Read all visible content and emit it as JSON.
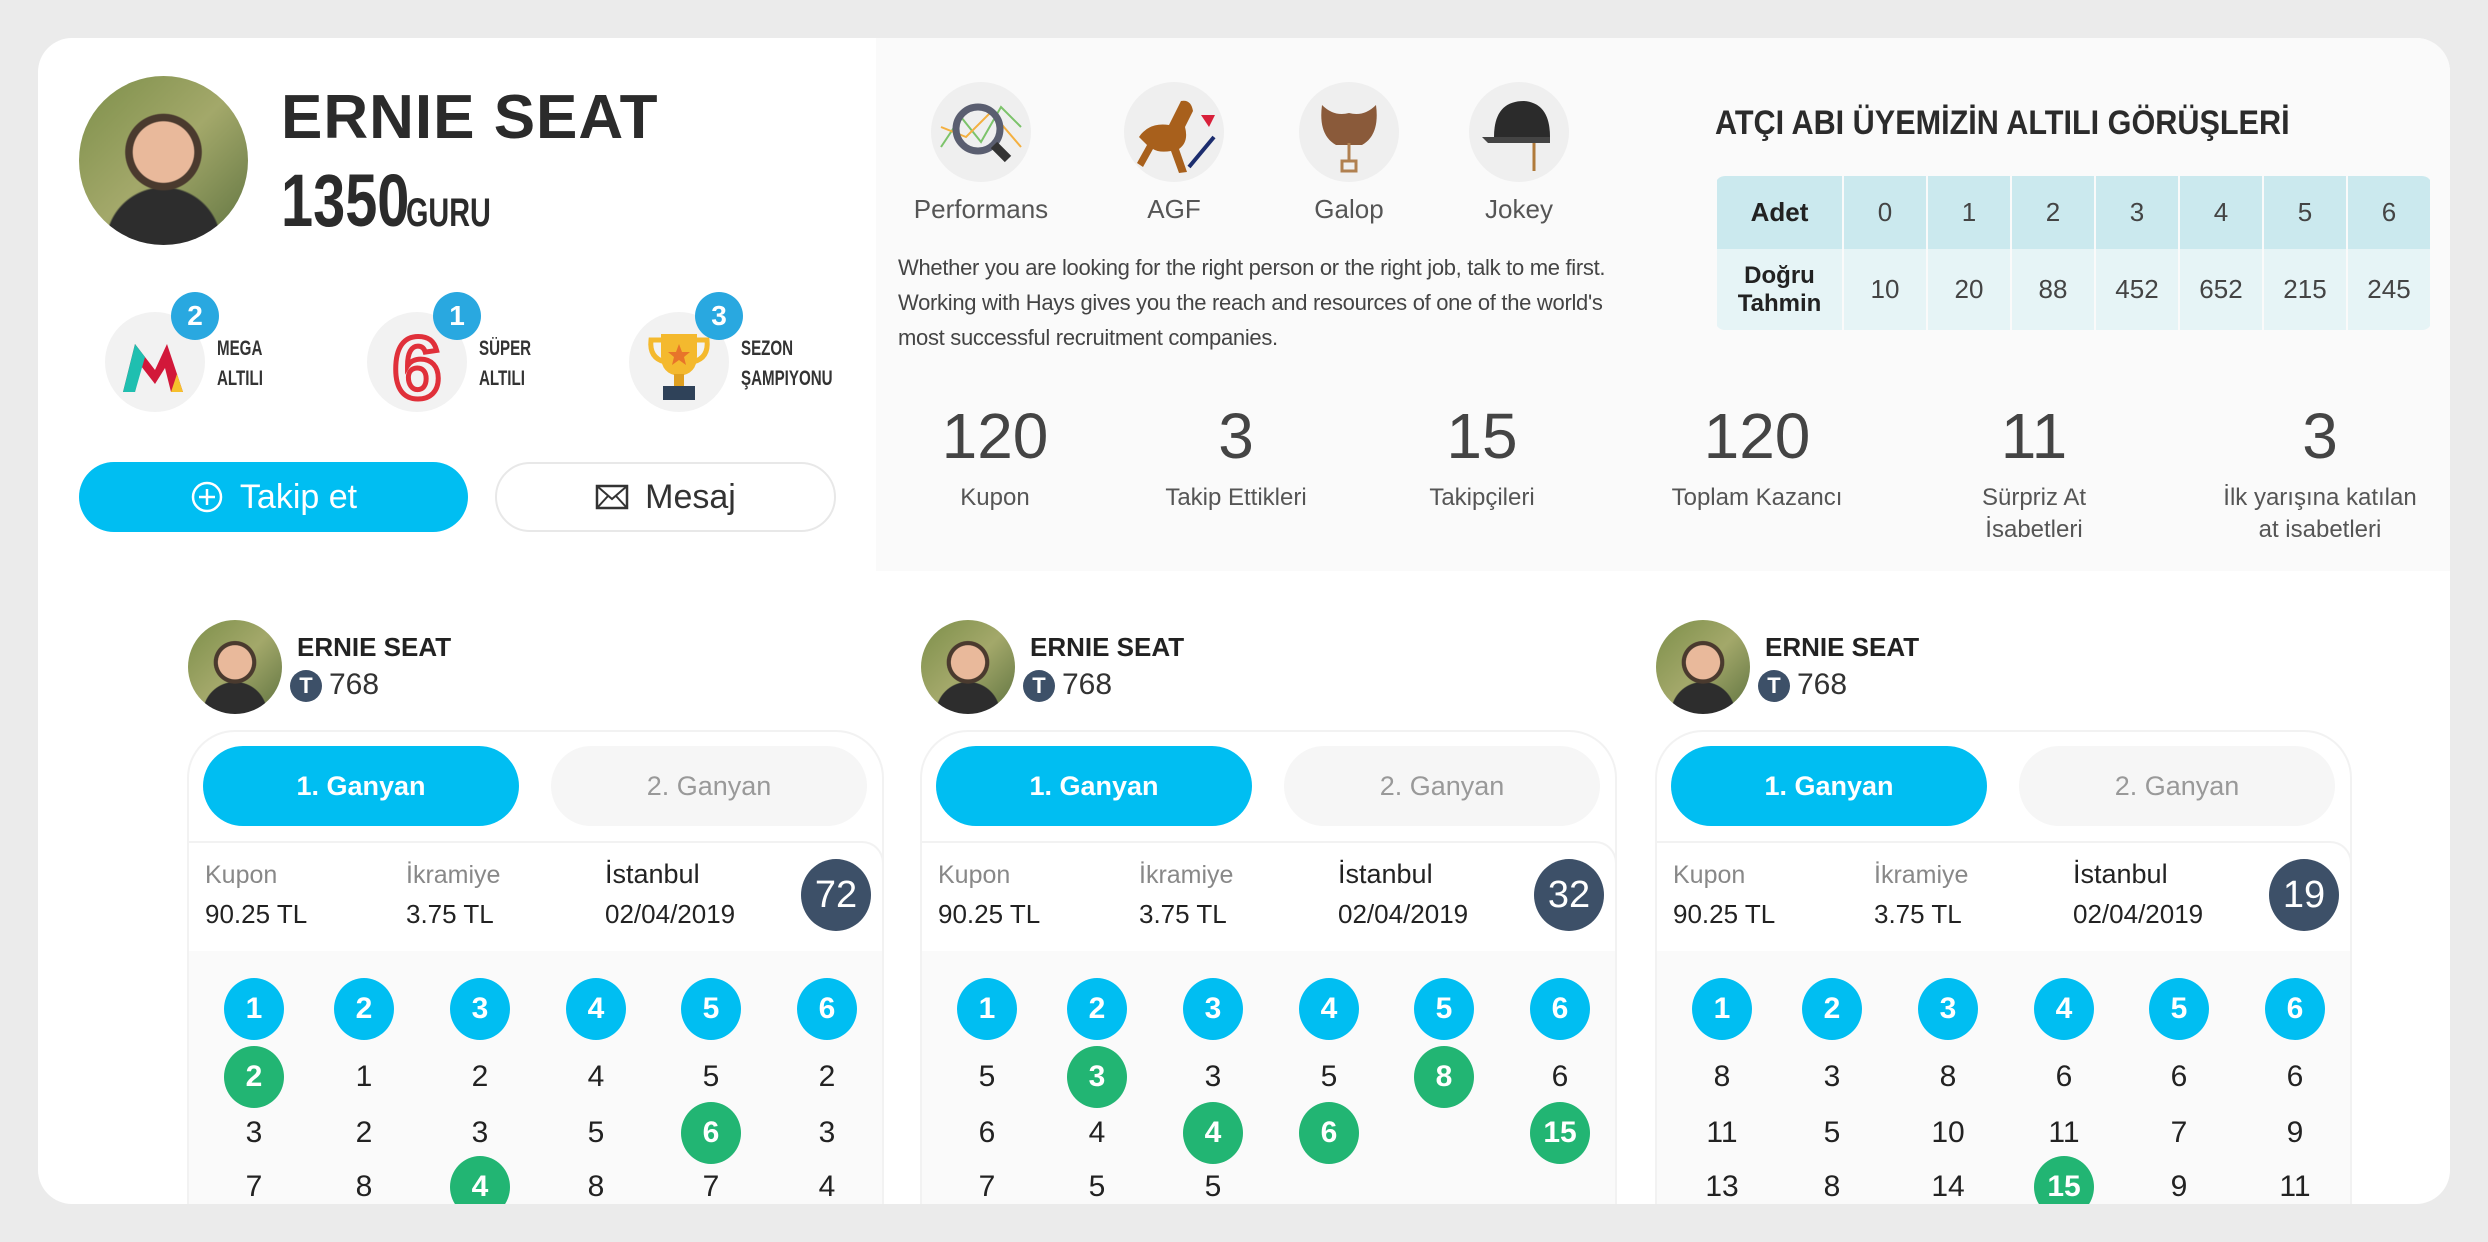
{
  "colors": {
    "accent": "#00bef2",
    "hit": "#22b573",
    "badge_dark": "#3d5068",
    "count_badge": "#29a8e0"
  },
  "profile": {
    "name": "ERNIE SEAT",
    "score": "1350",
    "rank": "GURU"
  },
  "badges": [
    {
      "icon": "mega-altili-logo",
      "count": "2",
      "line1": "MEGA",
      "line2": "ALTILI"
    },
    {
      "icon": "super-altili-logo",
      "count": "1",
      "line1": "SÜPER",
      "line2": "ALTILI"
    },
    {
      "icon": "trophy-icon",
      "count": "3",
      "line1": "SEZON",
      "line2": "ŞAMPIYONU"
    }
  ],
  "buttons": {
    "follow": "Takip et",
    "message": "Mesaj"
  },
  "features": [
    {
      "label": "Performans",
      "icon": "performance-icon"
    },
    {
      "label": "AGF",
      "icon": "horse-icon"
    },
    {
      "label": "Galop",
      "icon": "saddle-icon"
    },
    {
      "label": "Jokey",
      "icon": "helmet-icon"
    }
  ],
  "bio": "Whether you are looking for the right person or the right job, talk to me first. Working with Hays gives you the reach and resources of one of the world's most successful recruitment companies.",
  "stats_table": {
    "title": "ATÇI ABI ÜYEMİZİN ALTILI GÖRÜŞLERİ",
    "row1_label": "Adet",
    "row2_label_1": "Doğru",
    "row2_label_2": "Tahmin",
    "counts": [
      "0",
      "1",
      "2",
      "3",
      "4",
      "5",
      "6"
    ],
    "correct": [
      "10",
      "20",
      "88",
      "452",
      "652",
      "215",
      "245"
    ]
  },
  "stats": [
    {
      "value": "120",
      "label": "Kupon"
    },
    {
      "value": "3",
      "label": "Takip Ettikleri"
    },
    {
      "value": "15",
      "label": "Takipçileri"
    },
    {
      "value": "120",
      "label": "Toplam Kazancı"
    },
    {
      "value": "11",
      "label": "Sürpriz At İsabetleri"
    },
    {
      "value": "3",
      "label": "İlk yarışına katılan at isabetleri"
    }
  ],
  "predictions": [
    {
      "user": "ERNIE SEAT",
      "points": "768",
      "tab1": "1. Ganyan",
      "tab2": "2. Ganyan",
      "kupon_label": "Kupon",
      "kupon": "90.25 TL",
      "ikramiye_label": "İkramiye",
      "ikramiye": "3.75 TL",
      "city": "İstanbul",
      "date": "02/04/2019",
      "badge": "72",
      "legs": [
        "1",
        "2",
        "3",
        "4",
        "5",
        "6"
      ],
      "rows": [
        [
          {
            "v": "2",
            "hit": true
          },
          {
            "v": "1"
          },
          {
            "v": "2"
          },
          {
            "v": "4"
          },
          {
            "v": "5"
          },
          {
            "v": "2"
          }
        ],
        [
          {
            "v": "3"
          },
          {
            "v": "2"
          },
          {
            "v": "3"
          },
          {
            "v": "5"
          },
          {
            "v": "6",
            "hit": true
          },
          {
            "v": "3"
          }
        ],
        [
          {
            "v": "7"
          },
          {
            "v": "8"
          },
          {
            "v": "4",
            "hit": true
          },
          {
            "v": "8"
          },
          {
            "v": "7"
          },
          {
            "v": "4"
          }
        ]
      ]
    },
    {
      "user": "ERNIE SEAT",
      "points": "768",
      "tab1": "1. Ganyan",
      "tab2": "2. Ganyan",
      "kupon_label": "Kupon",
      "kupon": "90.25 TL",
      "ikramiye_label": "İkramiye",
      "ikramiye": "3.75 TL",
      "city": "İstanbul",
      "date": "02/04/2019",
      "badge": "32",
      "legs": [
        "1",
        "2",
        "3",
        "4",
        "5",
        "6"
      ],
      "rows": [
        [
          {
            "v": "5"
          },
          {
            "v": "3",
            "hit": true
          },
          {
            "v": "3"
          },
          {
            "v": "5"
          },
          {
            "v": "8",
            "hit": true
          },
          {
            "v": "6"
          }
        ],
        [
          {
            "v": "6"
          },
          {
            "v": "4"
          },
          {
            "v": "4",
            "hit": true
          },
          {
            "v": "6",
            "hit": true
          },
          {
            "v": ""
          },
          {
            "v": "15",
            "hit": true
          }
        ],
        [
          {
            "v": "7"
          },
          {
            "v": "5"
          },
          {
            "v": "5"
          },
          {
            "v": ""
          },
          {
            "v": ""
          },
          {
            "v": ""
          }
        ]
      ]
    },
    {
      "user": "ERNIE SEAT",
      "points": "768",
      "tab1": "1. Ganyan",
      "tab2": "2. Ganyan",
      "kupon_label": "Kupon",
      "kupon": "90.25 TL",
      "ikramiye_label": "İkramiye",
      "ikramiye": "3.75 TL",
      "city": "İstanbul",
      "date": "02/04/2019",
      "badge": "19",
      "legs": [
        "1",
        "2",
        "3",
        "4",
        "5",
        "6"
      ],
      "rows": [
        [
          {
            "v": "8"
          },
          {
            "v": "3"
          },
          {
            "v": "8"
          },
          {
            "v": "6"
          },
          {
            "v": "6"
          },
          {
            "v": "6"
          }
        ],
        [
          {
            "v": "11"
          },
          {
            "v": "5"
          },
          {
            "v": "10"
          },
          {
            "v": "11"
          },
          {
            "v": "7"
          },
          {
            "v": "9"
          }
        ],
        [
          {
            "v": "13"
          },
          {
            "v": "8"
          },
          {
            "v": "14"
          },
          {
            "v": "15",
            "hit": true
          },
          {
            "v": "9"
          },
          {
            "v": "11"
          }
        ]
      ]
    }
  ]
}
